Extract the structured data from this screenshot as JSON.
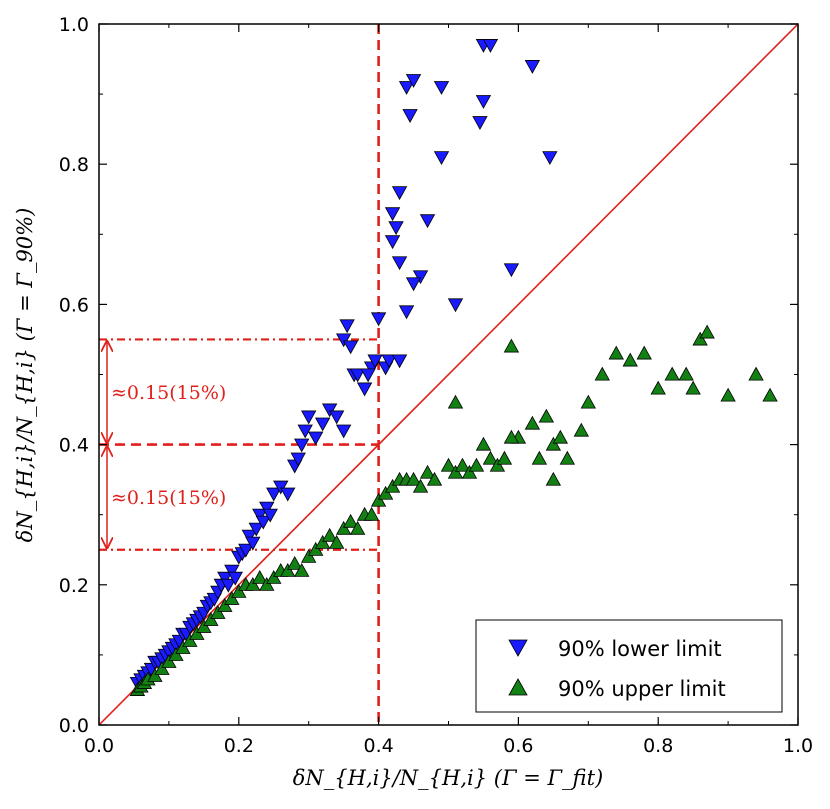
{
  "chart_data": {
    "type": "scatter",
    "xlabel": "δN_{H,i}/N_{H,i} (Γ = Γ_fit)",
    "ylabel": "δN_{H,i}/N_{H,i} (Γ = Γ_90%)",
    "xlim": [
      0.0,
      1.0
    ],
    "ylim": [
      0.0,
      1.0
    ],
    "xticks": [
      "0.0",
      "0.2",
      "0.4",
      "0.6",
      "0.8",
      "1.0"
    ],
    "yticks": [
      "0.0",
      "0.2",
      "0.4",
      "0.6",
      "0.8",
      "1.0"
    ],
    "legend_position": "bottom-right",
    "grid": false,
    "annotations": [
      "≈0.15(15%)",
      "≈0.15(15%)"
    ],
    "reference_lines": {
      "diagonal": [
        [
          0,
          0
        ],
        [
          1,
          1
        ]
      ],
      "vertical_dashed_x": 0.4,
      "horizontal_dashed_y": 0.4,
      "horizontal_dashdot_y": [
        0.55,
        0.25
      ]
    },
    "series": [
      {
        "name": "90% lower limit",
        "marker": "triangle-down",
        "color": "#1a1aff",
        "points": [
          [
            0.055,
            0.06
          ],
          [
            0.06,
            0.065
          ],
          [
            0.065,
            0.07
          ],
          [
            0.07,
            0.075
          ],
          [
            0.075,
            0.08
          ],
          [
            0.08,
            0.09
          ],
          [
            0.085,
            0.09
          ],
          [
            0.09,
            0.095
          ],
          [
            0.095,
            0.1
          ],
          [
            0.1,
            0.105
          ],
          [
            0.105,
            0.11
          ],
          [
            0.11,
            0.115
          ],
          [
            0.115,
            0.12
          ],
          [
            0.12,
            0.13
          ],
          [
            0.125,
            0.13
          ],
          [
            0.13,
            0.14
          ],
          [
            0.135,
            0.145
          ],
          [
            0.14,
            0.15
          ],
          [
            0.145,
            0.155
          ],
          [
            0.15,
            0.16
          ],
          [
            0.155,
            0.17
          ],
          [
            0.16,
            0.175
          ],
          [
            0.165,
            0.18
          ],
          [
            0.17,
            0.19
          ],
          [
            0.175,
            0.2
          ],
          [
            0.18,
            0.21
          ],
          [
            0.185,
            0.2
          ],
          [
            0.19,
            0.22
          ],
          [
            0.195,
            0.21
          ],
          [
            0.2,
            0.24
          ],
          [
            0.205,
            0.245
          ],
          [
            0.21,
            0.25
          ],
          [
            0.215,
            0.27
          ],
          [
            0.22,
            0.26
          ],
          [
            0.225,
            0.28
          ],
          [
            0.23,
            0.3
          ],
          [
            0.235,
            0.29
          ],
          [
            0.24,
            0.31
          ],
          [
            0.245,
            0.3
          ],
          [
            0.25,
            0.33
          ],
          [
            0.26,
            0.34
          ],
          [
            0.27,
            0.33
          ],
          [
            0.28,
            0.37
          ],
          [
            0.285,
            0.38
          ],
          [
            0.29,
            0.4
          ],
          [
            0.295,
            0.42
          ],
          [
            0.3,
            0.44
          ],
          [
            0.31,
            0.41
          ],
          [
            0.32,
            0.43
          ],
          [
            0.33,
            0.45
          ],
          [
            0.34,
            0.44
          ],
          [
            0.35,
            0.42
          ],
          [
            0.35,
            0.55
          ],
          [
            0.355,
            0.57
          ],
          [
            0.36,
            0.54
          ],
          [
            0.365,
            0.5
          ],
          [
            0.37,
            0.5
          ],
          [
            0.38,
            0.48
          ],
          [
            0.39,
            0.51
          ],
          [
            0.4,
            0.58
          ],
          [
            0.41,
            0.51
          ],
          [
            0.415,
            0.52
          ],
          [
            0.42,
            0.69
          ],
          [
            0.425,
            0.71
          ],
          [
            0.43,
            0.66
          ],
          [
            0.44,
            0.59
          ],
          [
            0.42,
            0.73
          ],
          [
            0.43,
            0.76
          ],
          [
            0.47,
            0.72
          ],
          [
            0.46,
            0.64
          ],
          [
            0.45,
            0.63
          ],
          [
            0.44,
            0.91
          ],
          [
            0.45,
            0.92
          ],
          [
            0.445,
            0.87
          ],
          [
            0.49,
            0.91
          ],
          [
            0.49,
            0.81
          ],
          [
            0.51,
            0.6
          ],
          [
            0.55,
            0.97
          ],
          [
            0.56,
            0.97
          ],
          [
            0.55,
            0.89
          ],
          [
            0.545,
            0.86
          ],
          [
            0.59,
            0.65
          ],
          [
            0.62,
            0.94
          ],
          [
            0.645,
            0.81
          ],
          [
            0.395,
            0.52
          ],
          [
            0.385,
            0.5
          ],
          [
            0.43,
            0.52
          ]
        ]
      },
      {
        "name": "90% upper limit",
        "marker": "triangle-up",
        "color": "#138013",
        "points": [
          [
            0.055,
            0.05
          ],
          [
            0.06,
            0.055
          ],
          [
            0.065,
            0.06
          ],
          [
            0.07,
            0.065
          ],
          [
            0.08,
            0.07
          ],
          [
            0.09,
            0.08
          ],
          [
            0.1,
            0.09
          ],
          [
            0.11,
            0.1
          ],
          [
            0.12,
            0.11
          ],
          [
            0.13,
            0.12
          ],
          [
            0.14,
            0.13
          ],
          [
            0.15,
            0.14
          ],
          [
            0.16,
            0.15
          ],
          [
            0.17,
            0.16
          ],
          [
            0.18,
            0.17
          ],
          [
            0.19,
            0.18
          ],
          [
            0.2,
            0.19
          ],
          [
            0.21,
            0.2
          ],
          [
            0.22,
            0.2
          ],
          [
            0.23,
            0.21
          ],
          [
            0.24,
            0.2
          ],
          [
            0.25,
            0.21
          ],
          [
            0.26,
            0.22
          ],
          [
            0.27,
            0.22
          ],
          [
            0.28,
            0.23
          ],
          [
            0.29,
            0.22
          ],
          [
            0.3,
            0.24
          ],
          [
            0.31,
            0.25
          ],
          [
            0.32,
            0.26
          ],
          [
            0.33,
            0.27
          ],
          [
            0.34,
            0.26
          ],
          [
            0.35,
            0.28
          ],
          [
            0.36,
            0.29
          ],
          [
            0.37,
            0.28
          ],
          [
            0.38,
            0.3
          ],
          [
            0.39,
            0.3
          ],
          [
            0.4,
            0.32
          ],
          [
            0.41,
            0.33
          ],
          [
            0.42,
            0.34
          ],
          [
            0.43,
            0.35
          ],
          [
            0.44,
            0.35
          ],
          [
            0.45,
            0.35
          ],
          [
            0.46,
            0.34
          ],
          [
            0.47,
            0.36
          ],
          [
            0.48,
            0.35
          ],
          [
            0.5,
            0.37
          ],
          [
            0.51,
            0.36
          ],
          [
            0.52,
            0.37
          ],
          [
            0.53,
            0.36
          ],
          [
            0.54,
            0.37
          ],
          [
            0.55,
            0.4
          ],
          [
            0.56,
            0.38
          ],
          [
            0.57,
            0.37
          ],
          [
            0.58,
            0.38
          ],
          [
            0.59,
            0.54
          ],
          [
            0.6,
            0.41
          ],
          [
            0.62,
            0.43
          ],
          [
            0.64,
            0.44
          ],
          [
            0.65,
            0.4
          ],
          [
            0.66,
            0.41
          ],
          [
            0.67,
            0.38
          ],
          [
            0.7,
            0.46
          ],
          [
            0.72,
            0.5
          ],
          [
            0.74,
            0.53
          ],
          [
            0.76,
            0.52
          ],
          [
            0.78,
            0.53
          ],
          [
            0.8,
            0.48
          ],
          [
            0.82,
            0.5
          ],
          [
            0.84,
            0.5
          ],
          [
            0.85,
            0.48
          ],
          [
            0.86,
            0.55
          ],
          [
            0.87,
            0.56
          ],
          [
            0.9,
            0.47
          ],
          [
            0.94,
            0.5
          ],
          [
            0.96,
            0.47
          ],
          [
            0.51,
            0.46
          ],
          [
            0.59,
            0.41
          ],
          [
            0.63,
            0.38
          ],
          [
            0.65,
            0.35
          ],
          [
            0.69,
            0.42
          ]
        ]
      }
    ]
  }
}
